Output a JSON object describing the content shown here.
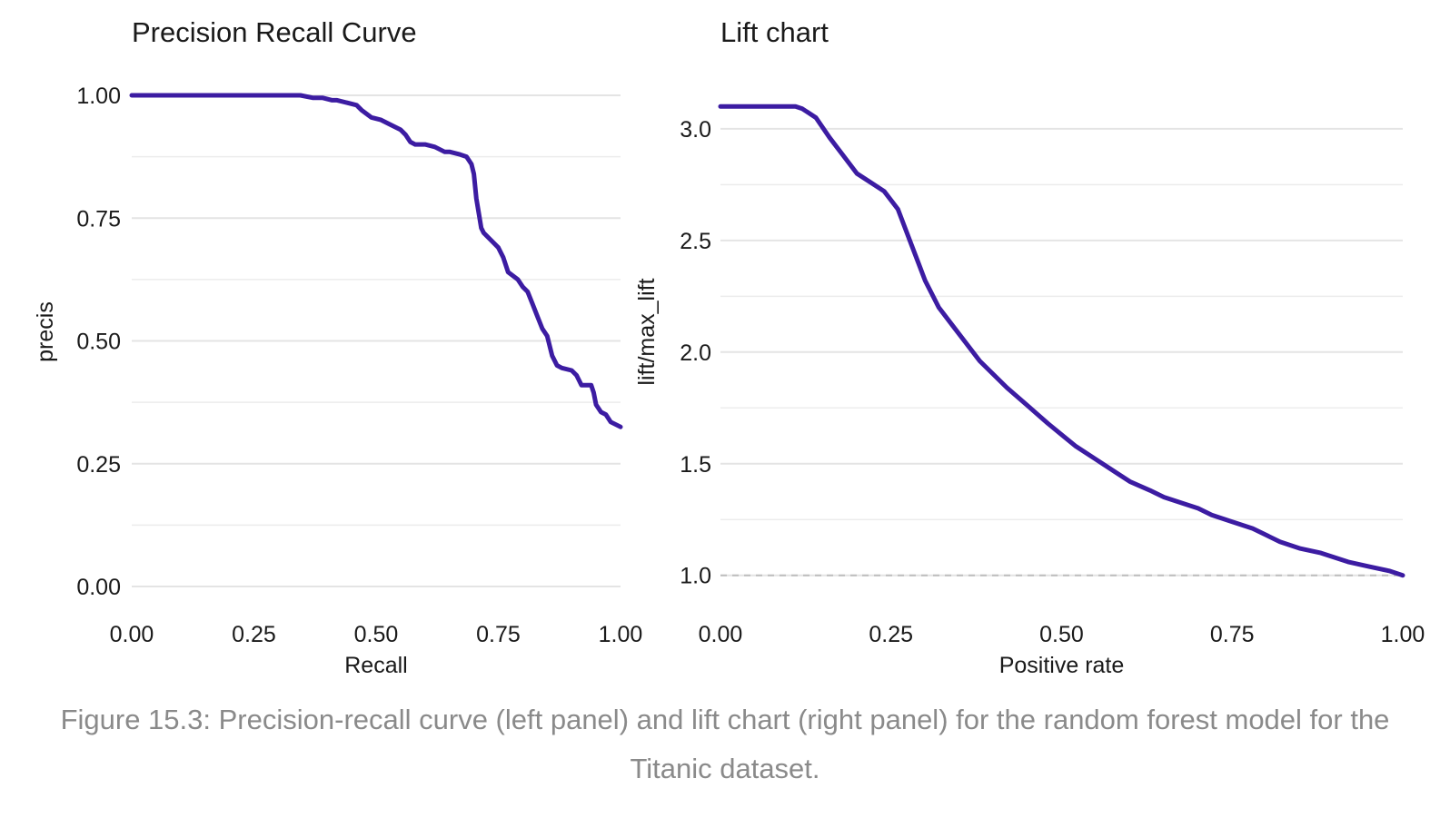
{
  "chart_data": [
    {
      "type": "line",
      "title": "Precision Recall Curve",
      "xlabel": "Recall",
      "ylabel": "precis",
      "xlim": [
        0,
        1
      ],
      "ylim": [
        0,
        1
      ],
      "x_ticks": [
        "0.00",
        "0.25",
        "0.50",
        "0.75",
        "1.00"
      ],
      "y_ticks": [
        "0.00",
        "0.25",
        "0.50",
        "0.75",
        "1.00"
      ],
      "grid": true,
      "line_color": "#3c1ca2",
      "series": [
        {
          "x": [
            0.0,
            0.1,
            0.2,
            0.3,
            0.345,
            0.37,
            0.39,
            0.41,
            0.42,
            0.44,
            0.46,
            0.47,
            0.49,
            0.51,
            0.53,
            0.55,
            0.56,
            0.57,
            0.58,
            0.6,
            0.62,
            0.64,
            0.65,
            0.67,
            0.685,
            0.695,
            0.7,
            0.705,
            0.71,
            0.715,
            0.72,
            0.74,
            0.75,
            0.76,
            0.77,
            0.79,
            0.8,
            0.81,
            0.82,
            0.83,
            0.84,
            0.85,
            0.86,
            0.87,
            0.88,
            0.9,
            0.91,
            0.92,
            0.94,
            0.945,
            0.95,
            0.96,
            0.97,
            0.98,
            1.0
          ],
          "y": [
            1.0,
            1.0,
            1.0,
            1.0,
            1.0,
            0.995,
            0.995,
            0.99,
            0.99,
            0.985,
            0.98,
            0.97,
            0.955,
            0.95,
            0.94,
            0.93,
            0.92,
            0.905,
            0.9,
            0.9,
            0.895,
            0.885,
            0.885,
            0.88,
            0.875,
            0.86,
            0.84,
            0.79,
            0.76,
            0.73,
            0.72,
            0.7,
            0.69,
            0.67,
            0.64,
            0.625,
            0.61,
            0.6,
            0.575,
            0.55,
            0.525,
            0.51,
            0.47,
            0.45,
            0.445,
            0.44,
            0.43,
            0.41,
            0.41,
            0.395,
            0.37,
            0.355,
            0.35,
            0.335,
            0.325
          ]
        }
      ]
    },
    {
      "type": "line",
      "title": "Lift chart",
      "xlabel": "Positive rate",
      "ylabel": "lift/max_lift",
      "xlim": [
        0,
        1
      ],
      "ylim": [
        0.95,
        3.15
      ],
      "x_ticks": [
        "0.00",
        "0.25",
        "0.50",
        "0.75",
        "1.00"
      ],
      "y_ticks": [
        "1.0",
        "1.5",
        "2.0",
        "2.5",
        "3.0"
      ],
      "grid": true,
      "reference_line": {
        "y": 1.0,
        "style": "dashed",
        "color": "#bdbdbd"
      },
      "line_color": "#3c1ca2",
      "series": [
        {
          "x": [
            0.0,
            0.05,
            0.11,
            0.12,
            0.14,
            0.16,
            0.18,
            0.2,
            0.22,
            0.24,
            0.26,
            0.28,
            0.3,
            0.32,
            0.34,
            0.36,
            0.38,
            0.4,
            0.42,
            0.45,
            0.48,
            0.5,
            0.52,
            0.55,
            0.58,
            0.6,
            0.63,
            0.65,
            0.68,
            0.7,
            0.72,
            0.75,
            0.78,
            0.8,
            0.82,
            0.85,
            0.88,
            0.9,
            0.92,
            0.95,
            0.98,
            1.0
          ],
          "y": [
            3.1,
            3.1,
            3.1,
            3.09,
            3.05,
            2.96,
            2.88,
            2.8,
            2.76,
            2.72,
            2.64,
            2.48,
            2.32,
            2.2,
            2.12,
            2.04,
            1.96,
            1.9,
            1.84,
            1.76,
            1.68,
            1.63,
            1.58,
            1.52,
            1.46,
            1.42,
            1.38,
            1.35,
            1.32,
            1.3,
            1.27,
            1.24,
            1.21,
            1.18,
            1.15,
            1.12,
            1.1,
            1.08,
            1.06,
            1.04,
            1.02,
            1.0
          ]
        }
      ]
    }
  ],
  "caption": "Figure 15.3: Precision-recall curve (left panel) and lift chart (right panel) for the random forest model for the Titanic dataset."
}
